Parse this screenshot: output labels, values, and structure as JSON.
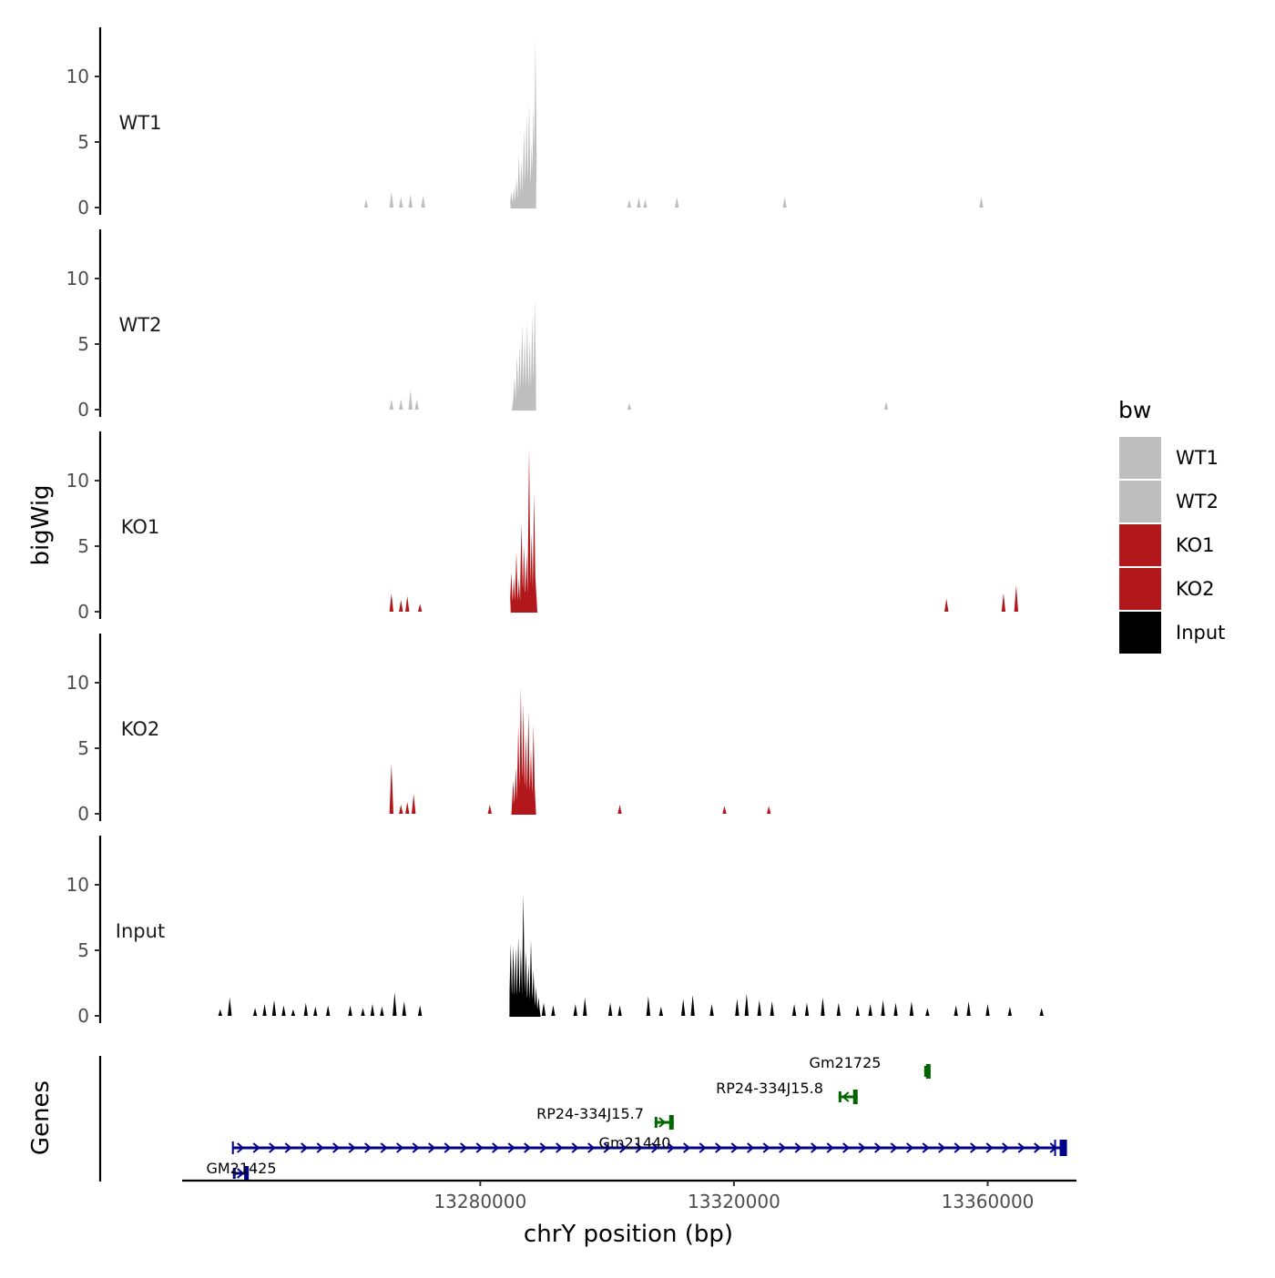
{
  "chart_data": {
    "type": "area",
    "ylabel": "bigWig",
    "xlabel": "chrY position (bp)",
    "ylim": [
      0,
      13.5
    ],
    "yticks": [
      0,
      5,
      10
    ],
    "xlim": [
      13233000,
      13374000
    ],
    "xticks": [
      13280000,
      13320000,
      13360000
    ],
    "legend": {
      "title": "bw",
      "position": "right",
      "entries": [
        {
          "name": "WT1",
          "color": "#bebebe"
        },
        {
          "name": "WT2",
          "color": "#bebebe"
        },
        {
          "name": "KO1",
          "color": "#b2181b"
        },
        {
          "name": "KO2",
          "color": "#b2181b"
        },
        {
          "name": "Input",
          "color": "#000000"
        }
      ]
    },
    "tracks": [
      {
        "name": "WT1",
        "color": "#bebebe",
        "scattered_peaks": [
          [
            13262000,
            0.6
          ],
          [
            13266000,
            1.2
          ],
          [
            13267500,
            0.8
          ],
          [
            13269000,
            1.0
          ],
          [
            13271000,
            0.9
          ],
          [
            13288000,
            1.4
          ],
          [
            13303500,
            0.6
          ],
          [
            13305000,
            0.8
          ],
          [
            13306000,
            0.6
          ],
          [
            13311000,
            0.8
          ],
          [
            13328000,
            0.8
          ],
          [
            13359000,
            0.8
          ]
        ],
        "main_region": [
          13284800,
          13288800
        ],
        "main_peaks": [
          [
            13284900,
            1.2
          ],
          [
            13285300,
            1.5
          ],
          [
            13285700,
            2.2
          ],
          [
            13286100,
            4.0
          ],
          [
            13286500,
            3.6
          ],
          [
            13286900,
            6.0
          ],
          [
            13287300,
            7.2
          ],
          [
            13287700,
            8.0
          ],
          [
            13288100,
            5.0
          ],
          [
            13288400,
            7.8
          ],
          [
            13288700,
            12.9
          ]
        ]
      },
      {
        "name": "WT2",
        "color": "#bebebe",
        "scattered_peaks": [
          [
            13266000,
            0.8
          ],
          [
            13267500,
            0.8
          ],
          [
            13269000,
            1.5
          ],
          [
            13270000,
            0.8
          ],
          [
            13303500,
            0.5
          ],
          [
            13344000,
            0.6
          ]
        ],
        "main_region": [
          13285000,
          13288800
        ],
        "main_peaks": [
          [
            13285400,
            2.5
          ],
          [
            13285800,
            4.2
          ],
          [
            13286200,
            5.0
          ],
          [
            13286600,
            6.5
          ],
          [
            13287000,
            5.8
          ],
          [
            13287400,
            6.8
          ],
          [
            13287800,
            5.5
          ],
          [
            13288200,
            7.2
          ],
          [
            13288600,
            8.5
          ]
        ]
      },
      {
        "name": "KO1",
        "color": "#b2181b",
        "scattered_peaks": [
          [
            13266000,
            1.4
          ],
          [
            13267500,
            0.9
          ],
          [
            13268500,
            1.2
          ],
          [
            13270500,
            0.6
          ],
          [
            13353500,
            1.0
          ],
          [
            13362500,
            1.4
          ],
          [
            13364500,
            2.0
          ]
        ],
        "main_region": [
          13284800,
          13289000
        ],
        "main_peaks": [
          [
            13284900,
            3.0
          ],
          [
            13285300,
            2.6
          ],
          [
            13285700,
            4.6
          ],
          [
            13286100,
            2.5
          ],
          [
            13286500,
            6.8
          ],
          [
            13286900,
            5.0
          ],
          [
            13287300,
            4.4
          ],
          [
            13287700,
            12.5
          ],
          [
            13288100,
            6.0
          ],
          [
            13288500,
            9.0
          ]
        ]
      },
      {
        "name": "KO2",
        "color": "#b2181b",
        "scattered_peaks": [
          [
            13266000,
            3.8
          ],
          [
            13267500,
            0.7
          ],
          [
            13268500,
            0.9
          ],
          [
            13269500,
            1.5
          ],
          [
            13281500,
            0.7
          ],
          [
            13302000,
            0.7
          ],
          [
            13318500,
            0.6
          ],
          [
            13325500,
            0.6
          ]
        ],
        "main_region": [
          13284900,
          13288800
        ],
        "main_peaks": [
          [
            13285200,
            2.5
          ],
          [
            13285600,
            3.5
          ],
          [
            13286000,
            6.8
          ],
          [
            13286400,
            9.6
          ],
          [
            13286800,
            8.4
          ],
          [
            13287200,
            6.0
          ],
          [
            13287600,
            7.8
          ],
          [
            13288000,
            5.0
          ],
          [
            13288400,
            6.8
          ]
        ]
      },
      {
        "name": "Input",
        "color": "#000000",
        "scattered_peaks": [
          [
            13239000,
            0.5
          ],
          [
            13240500,
            1.4
          ],
          [
            13244500,
            0.6
          ],
          [
            13246000,
            0.9
          ],
          [
            13247500,
            1.2
          ],
          [
            13249000,
            0.8
          ],
          [
            13250500,
            0.5
          ],
          [
            13252500,
            1.0
          ],
          [
            13254000,
            0.7
          ],
          [
            13256000,
            0.8
          ],
          [
            13259500,
            0.8
          ],
          [
            13261500,
            0.6
          ],
          [
            13263000,
            0.9
          ],
          [
            13264500,
            0.7
          ],
          [
            13266500,
            1.8
          ],
          [
            13268000,
            1.1
          ],
          [
            13270500,
            0.8
          ],
          [
            13290000,
            1.0
          ],
          [
            13291500,
            0.8
          ],
          [
            13295000,
            0.9
          ],
          [
            13296500,
            1.4
          ],
          [
            13300500,
            1.0
          ],
          [
            13302000,
            0.8
          ],
          [
            13306500,
            1.5
          ],
          [
            13308500,
            0.7
          ],
          [
            13312000,
            1.3
          ],
          [
            13313500,
            1.6
          ],
          [
            13316500,
            0.9
          ],
          [
            13320500,
            1.3
          ],
          [
            13322000,
            1.7
          ],
          [
            13324000,
            1.2
          ],
          [
            13326000,
            1.1
          ],
          [
            13329500,
            0.9
          ],
          [
            13331500,
            1.0
          ],
          [
            13334000,
            1.4
          ],
          [
            13336500,
            1.0
          ],
          [
            13339500,
            0.8
          ],
          [
            13341500,
            0.9
          ],
          [
            13343500,
            1.2
          ],
          [
            13345500,
            1.0
          ],
          [
            13348000,
            1.1
          ],
          [
            13350500,
            0.6
          ],
          [
            13355000,
            0.8
          ],
          [
            13357000,
            1.1
          ],
          [
            13360000,
            0.9
          ],
          [
            13363500,
            0.7
          ],
          [
            13368500,
            0.6
          ]
        ],
        "main_region": [
          13284600,
          13289500
        ],
        "main_peaks": [
          [
            13284800,
            5.5
          ],
          [
            13285200,
            5.4
          ],
          [
            13285600,
            5.2
          ],
          [
            13286000,
            6.0
          ],
          [
            13286400,
            5.2
          ],
          [
            13286800,
            9.3
          ],
          [
            13287200,
            5.0
          ],
          [
            13287600,
            4.0
          ],
          [
            13288000,
            5.8
          ],
          [
            13288400,
            3.5
          ],
          [
            13288800,
            2.2
          ],
          [
            13289200,
            1.4
          ]
        ]
      }
    ],
    "genes_track": {
      "label": "Genes",
      "genes": [
        {
          "name": "Gm21725",
          "start": 13350000,
          "end": 13351000,
          "color": "#006400",
          "level": 4,
          "strand": "-"
        },
        {
          "name": "RP24-334J15.8",
          "start": 13336500,
          "end": 13339500,
          "color": "#006400",
          "level": 3,
          "strand": "-"
        },
        {
          "name": "RP24-334J15.7",
          "start": 13307500,
          "end": 13310500,
          "color": "#006400",
          "level": 2,
          "strand": "+"
        },
        {
          "name": "Gm21440",
          "start": 13241000,
          "end": 13372500,
          "color": "#00008b",
          "level": 1,
          "strand": "+"
        },
        {
          "name": "GM21425",
          "start": 13241000,
          "end": 13243500,
          "color": "#00008b",
          "level": 0,
          "strand": "+"
        }
      ]
    }
  }
}
